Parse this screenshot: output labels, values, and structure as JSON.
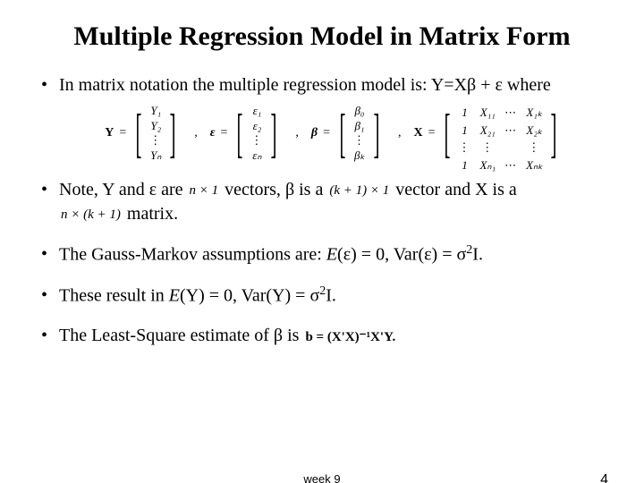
{
  "title": "Multiple Regression Model in Matrix Form",
  "bullets": {
    "b1a": "In matrix notation the multiple regression model is: Y=X",
    "b1b": " + ",
    "b1c": " where",
    "b2a": "Note, Y and ",
    "b2b": " are ",
    "b2c": " vectors, ",
    "b2d": " is a ",
    "b2e": " vector and X is a",
    "b2f": " matrix.",
    "b3a": "The Gauss-Markov assumptions are: ",
    "b3b": "E",
    "b3c": "(",
    "b3d": ") = 0, Var(",
    "b3e": ") = ",
    "b3f": "I.",
    "b4a": "These result in ",
    "b4b": "E",
    "b4c": "(Y) = 0, Var(Y) = ",
    "b4d": "I.",
    "b5a": "The Least-Square estimate of ",
    "b5b": " is "
  },
  "greek": {
    "beta": "β",
    "eps": "ε",
    "sigma": "σ"
  },
  "inline": {
    "n1": "n × 1",
    "k1": "(k + 1) × 1",
    "nk1": "n × (k + 1)",
    "bhat": "b = (X'X)⁻¹X'Y."
  },
  "matrices": {
    "Y": {
      "label": "Y",
      "rows": [
        "Y₁",
        "Y₂",
        "⋮",
        "Yₙ"
      ]
    },
    "eps": {
      "label": "ε",
      "rows": [
        "ε₁",
        "ε₂",
        "⋮",
        "εₙ"
      ]
    },
    "beta": {
      "label": "β",
      "rows": [
        "β₀",
        "β₁",
        "⋮",
        "βₖ"
      ]
    },
    "X": {
      "label": "X",
      "grid": [
        [
          "1",
          "X₁₁",
          "⋯",
          "X₁ₖ"
        ],
        [
          "1",
          "X₂₁",
          "⋯",
          "X₂ₖ"
        ],
        [
          "⋮",
          "⋮",
          "",
          "⋮"
        ],
        [
          "1",
          "Xₙ₁",
          "⋯",
          "Xₙₖ"
        ]
      ]
    }
  },
  "footer": {
    "week": "week 9",
    "page": "4"
  },
  "style": {
    "bg": "#ffffff",
    "text": "#000000",
    "title_fontsize": 30,
    "body_fontsize": 20,
    "matrix_fontsize": 13,
    "font": "Times New Roman"
  }
}
